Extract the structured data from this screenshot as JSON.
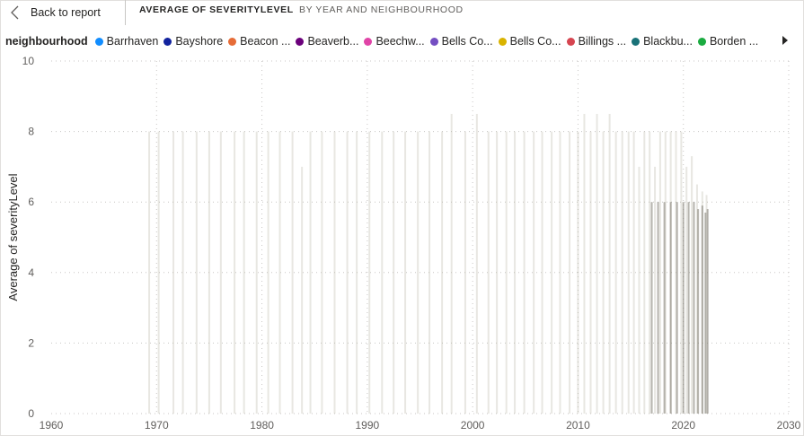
{
  "header": {
    "back_label": "Back to report",
    "title": "AVERAGE OF SEVERITYLEVEL",
    "subtitle": "BY YEAR AND NEIGHBOURHOOD"
  },
  "legend": {
    "title": "neighbourhood",
    "items": [
      {
        "label": "Barrhaven",
        "color": "#118DFF"
      },
      {
        "label": "Bayshore",
        "color": "#12239E"
      },
      {
        "label": "Beacon ...",
        "color": "#E66C37"
      },
      {
        "label": "Beaverb...",
        "color": "#6B007B"
      },
      {
        "label": "Beechw...",
        "color": "#E044A7"
      },
      {
        "label": "Bells Co...",
        "color": "#744EC2"
      },
      {
        "label": "Bells Co...",
        "color": "#D9B300"
      },
      {
        "label": "Billings ...",
        "color": "#D64550"
      },
      {
        "label": "Blackbu...",
        "color": "#197278"
      },
      {
        "label": "Borden ...",
        "color": "#1AAB40"
      }
    ]
  },
  "chart_data": {
    "type": "bar",
    "xlabel": "",
    "ylabel": "Average of severityLevel",
    "xlim": [
      1960,
      2030
    ],
    "ylim": [
      0,
      10
    ],
    "x_ticks": [
      "1960",
      "1970",
      "1980",
      "1990",
      "2000",
      "2010",
      "2020",
      "2030"
    ],
    "y_ticks": [
      "0",
      "2",
      "4",
      "6",
      "8",
      "10"
    ],
    "grid": true,
    "legend_placement": "top",
    "series": [
      {
        "values": [
          [
            1969.3,
            8
          ],
          [
            1970.2,
            8
          ],
          [
            1971.6,
            8
          ],
          [
            1972.5,
            8
          ],
          [
            1973.8,
            8
          ],
          [
            1975.0,
            8
          ],
          [
            1976.1,
            8
          ],
          [
            1977.4,
            8
          ],
          [
            1978.3,
            8
          ],
          [
            1979.5,
            8
          ],
          [
            1980.6,
            8
          ],
          [
            1981.7,
            8
          ],
          [
            1982.9,
            8
          ],
          [
            1983.8,
            7
          ],
          [
            1984.6,
            8
          ],
          [
            1985.7,
            8
          ],
          [
            1986.9,
            8
          ],
          [
            1988.1,
            8
          ],
          [
            1989.0,
            8
          ],
          [
            1990.2,
            8
          ],
          [
            1991.4,
            8
          ],
          [
            1992.5,
            8
          ],
          [
            1993.6,
            8
          ],
          [
            1994.8,
            8
          ],
          [
            1995.9,
            8
          ],
          [
            1997.1,
            8
          ],
          [
            1998.0,
            8.5
          ],
          [
            1999.3,
            8
          ],
          [
            2000.4,
            8.5
          ],
          [
            2001.5,
            8
          ],
          [
            2002.3,
            8
          ],
          [
            2003.2,
            8
          ],
          [
            2004.0,
            8
          ],
          [
            2004.9,
            8
          ],
          [
            2005.8,
            8
          ],
          [
            2006.6,
            8
          ],
          [
            2007.5,
            8
          ],
          [
            2008.3,
            8
          ],
          [
            2009.2,
            8
          ],
          [
            2010.0,
            8
          ],
          [
            2010.6,
            8.5
          ],
          [
            2011.2,
            8
          ],
          [
            2011.8,
            8.5
          ],
          [
            2012.4,
            8
          ],
          [
            2013.0,
            8.5
          ],
          [
            2013.6,
            8
          ],
          [
            2014.2,
            8
          ],
          [
            2014.8,
            8
          ],
          [
            2015.3,
            8
          ],
          [
            2015.8,
            7
          ],
          [
            2016.3,
            8
          ],
          [
            2016.8,
            8
          ],
          [
            2017.3,
            7
          ],
          [
            2017.8,
            8
          ],
          [
            2018.3,
            8
          ],
          [
            2018.8,
            8
          ],
          [
            2019.3,
            8
          ],
          [
            2019.8,
            8
          ],
          [
            2020.3,
            7
          ],
          [
            2020.8,
            7.3
          ],
          [
            2021.3,
            6.5
          ],
          [
            2021.8,
            6.3
          ],
          [
            2022.2,
            6.2
          ]
        ],
        "color": "#b8b3a6"
      },
      {
        "values": [
          [
            2017.0,
            6
          ],
          [
            2017.6,
            6
          ],
          [
            2018.2,
            6
          ],
          [
            2018.8,
            6
          ],
          [
            2019.4,
            6
          ],
          [
            2020.0,
            6
          ],
          [
            2020.5,
            6
          ],
          [
            2021.0,
            6
          ],
          [
            2021.4,
            5.8
          ],
          [
            2021.8,
            5.9
          ],
          [
            2022.1,
            5.7
          ],
          [
            2022.3,
            5.8
          ]
        ],
        "color": "#7a766c"
      }
    ]
  }
}
